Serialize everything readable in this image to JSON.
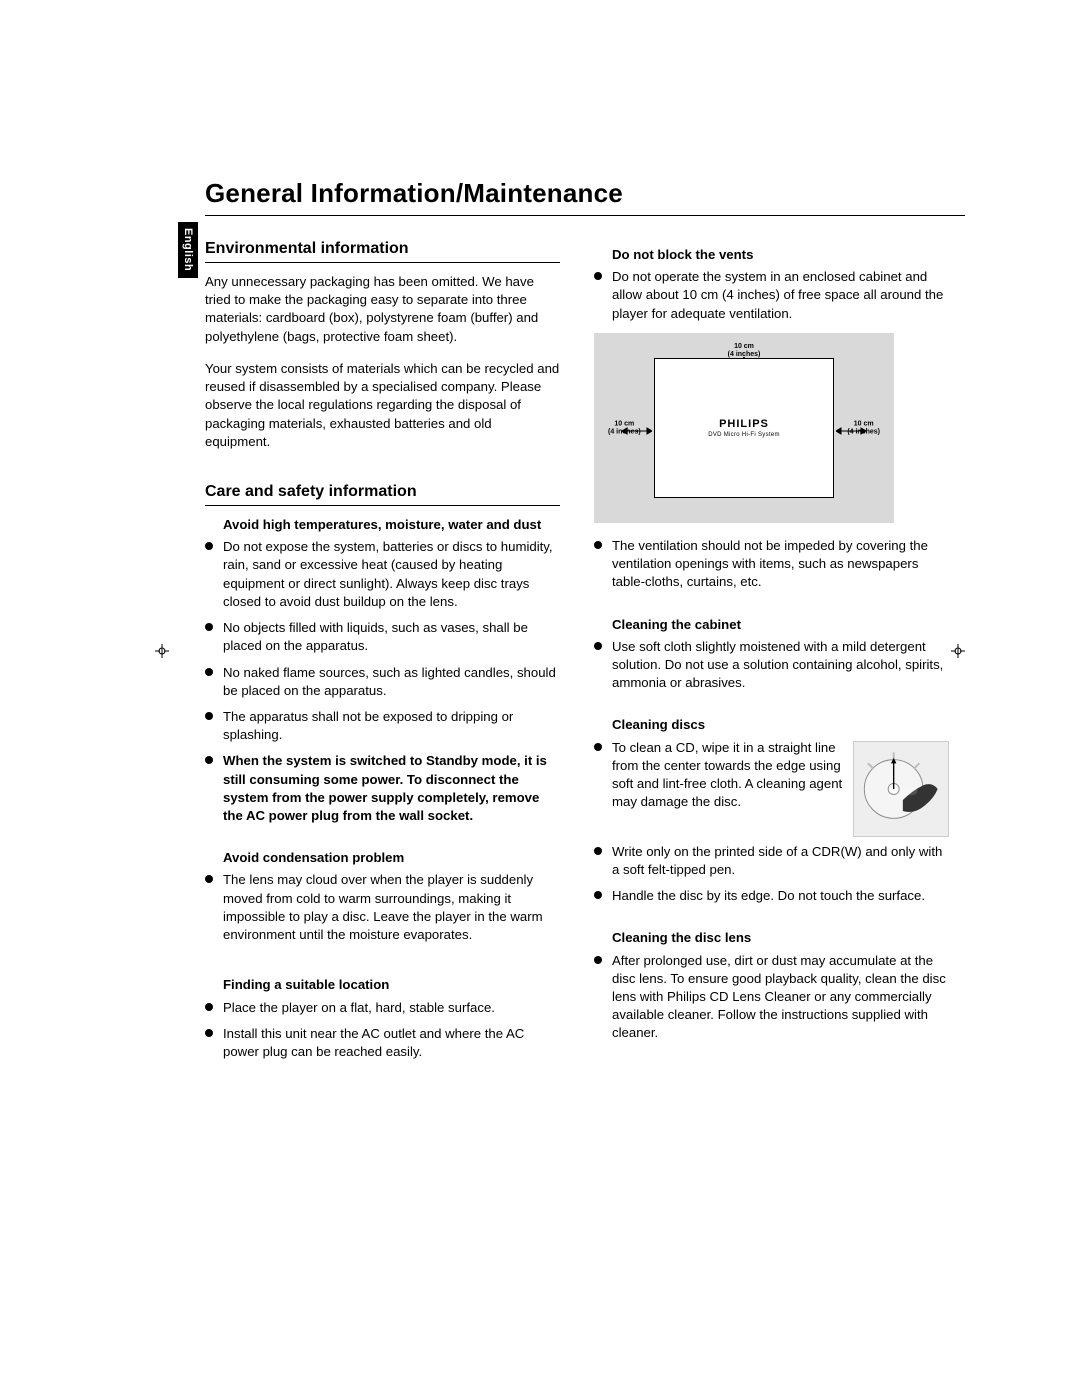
{
  "language_tab": "English",
  "title": "General Information/Maintenance",
  "left": {
    "env": {
      "heading": "Environmental information",
      "p1": "Any unnecessary packaging has been omitted. We have tried to make the packaging easy to separate into three materials: cardboard (box), polystyrene foam (buffer) and polyethylene (bags, protective foam sheet).",
      "p2": "Your system consists of materials which can be recycled and reused if disassembled by a specialised company. Please observe the local regulations regarding the disposal of packaging materials, exhausted batteries and old equipment."
    },
    "care": {
      "heading": "Care and safety information",
      "sub1": "Avoid high temperatures, moisture, water and dust",
      "b1": "Do not expose the system, batteries or discs to humidity, rain, sand or excessive heat (caused by heating equipment or direct sunlight). Always keep disc trays closed to avoid dust buildup on the lens.",
      "b2": "No objects filled with liquids, such as vases, shall be placed on the apparatus.",
      "b3": "No naked flame sources, such as lighted candles, should be placed on the apparatus.",
      "b4": "The apparatus shall not be exposed to dripping or splashing.",
      "b5_bold": "When the system is switched to Standby mode, it is still consuming some power. To disconnect the system from the power supply completely, remove the AC power plug from the wall socket.",
      "sub2": "Avoid condensation problem",
      "b6": "The lens may cloud over when the player is suddenly moved from cold to warm surroundings, making it impossible to play a disc. Leave the player in the warm environment until the moisture evaporates.",
      "sub3": "Finding a suitable location",
      "b7": "Place the player on a flat, hard, stable surface.",
      "b8": "Install this unit near the AC outlet and where the AC power plug can be reached easily."
    }
  },
  "right": {
    "vents": {
      "sub": "Do not block the vents",
      "b1": "Do not operate the system in an enclosed cabinet and allow about 10 cm (4 inches) of free space all around the player for adequate ventilation.",
      "fig": {
        "brand": "PHILIPS",
        "model": "DVD Micro Hi-Fi System",
        "dim": "10 cm\n(4 inches)"
      },
      "b2": "The ventilation should not be impeded by covering the ventilation openings with items, such as newspapers table-cloths, curtains, etc."
    },
    "cabinet": {
      "sub": "Cleaning the cabinet",
      "b1": "Use soft cloth slightly moistened with a mild detergent solution. Do not use a solution containing alcohol, spirits, ammonia or abrasives."
    },
    "discs": {
      "sub": "Cleaning discs",
      "b1": "To clean a CD, wipe it in a straight line from the center towards the edge using soft and lint-free cloth. A cleaning agent may damage the disc.",
      "b2": "Write only on the printed side of a CDR(W) and only with a soft felt-tipped pen.",
      "b3": "Handle the disc by its edge. Do not touch the surface."
    },
    "lens": {
      "sub": "Cleaning the disc lens",
      "b1": "After prolonged use, dirt or dust may accumulate at the disc lens. To ensure good playback quality, clean the disc lens with Philips CD Lens Cleaner or any commercially available cleaner. Follow the instructions supplied with cleaner."
    }
  }
}
